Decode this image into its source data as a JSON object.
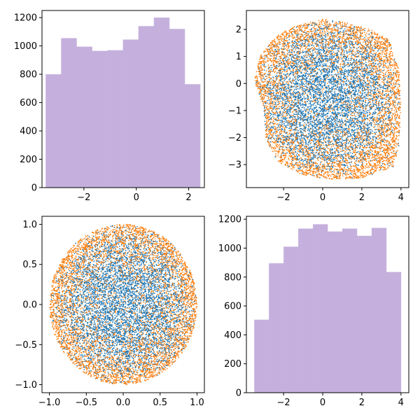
{
  "chart_data": [
    {
      "type": "histogram",
      "color": "#c5b0dd",
      "xlim": [
        -3.6,
        2.6
      ],
      "ylim": [
        0,
        1250
      ],
      "xticks": [
        -2,
        0,
        2
      ],
      "xtick_labels": [
        "−2",
        "0",
        "2"
      ],
      "yticks": [
        0,
        200,
        400,
        600,
        800,
        1000,
        1200
      ],
      "ytick_labels": [
        "0",
        "200",
        "400",
        "600",
        "800",
        "1000",
        "1200"
      ],
      "bin_edges": [
        -3.46,
        -2.87,
        -2.28,
        -1.69,
        -1.1,
        -0.51,
        0.08,
        0.67,
        1.26,
        1.85,
        2.44
      ],
      "counts": [
        800,
        1055,
        995,
        965,
        970,
        1045,
        1140,
        1200,
        1120,
        730
      ]
    },
    {
      "type": "scatter",
      "description_series": "two point clouds",
      "xlim": [
        -3.9,
        4.4
      ],
      "ylim": [
        -3.85,
        2.7
      ],
      "xticks": [
        -2,
        0,
        2,
        4
      ],
      "xtick_labels": [
        "−2",
        "0",
        "2",
        "4"
      ],
      "yticks": [
        -3,
        -2,
        -1,
        0,
        1,
        2
      ],
      "ytick_labels": [
        "−3",
        "−2",
        "−1",
        "0",
        "1",
        "2"
      ],
      "series": [
        {
          "color": "#1f77b4",
          "points_approx": 5000,
          "region": "interior"
        },
        {
          "color": "#ff7f0e",
          "points_approx": 5000,
          "region": "boundary-weighted"
        }
      ],
      "shape_boundary": [
        [
          -3.5,
          0.1
        ],
        [
          -3.2,
          1.0
        ],
        [
          -2.5,
          1.7
        ],
        [
          -1.5,
          2.1
        ],
        [
          0.0,
          2.4
        ],
        [
          1.5,
          2.2
        ],
        [
          2.5,
          2.0
        ],
        [
          3.4,
          1.6
        ],
        [
          3.9,
          0.5
        ],
        [
          4.0,
          -0.8
        ],
        [
          3.9,
          -2.3
        ],
        [
          3.6,
          -3.1
        ],
        [
          2.0,
          -3.5
        ],
        [
          0.5,
          -3.55
        ],
        [
          -1.0,
          -3.4
        ],
        [
          -2.3,
          -2.9
        ],
        [
          -2.9,
          -2.1
        ],
        [
          -3.0,
          -1.0
        ],
        [
          -3.3,
          -0.3
        ]
      ]
    },
    {
      "type": "scatter",
      "xlim": [
        -1.1,
        1.1
      ],
      "ylim": [
        -1.1,
        1.1
      ],
      "xticks": [
        -1.0,
        -0.5,
        0.0,
        0.5,
        1.0
      ],
      "xtick_labels": [
        "−1.0",
        "−0.5",
        "0.0",
        "0.5",
        "1.0"
      ],
      "yticks": [
        -1.0,
        -0.5,
        0.0,
        0.5,
        1.0
      ],
      "ytick_labels": [
        "−1.0",
        "−0.5",
        "0.0",
        "0.5",
        "1.0"
      ],
      "series": [
        {
          "color": "#1f77b4",
          "points_approx": 5000,
          "region": "interior"
        },
        {
          "color": "#ff7f0e",
          "points_approx": 5000,
          "region": "boundary-weighted"
        }
      ],
      "shape": "unit disk"
    },
    {
      "type": "histogram",
      "color": "#c5b0dd",
      "xlim": [
        -3.9,
        4.4
      ],
      "ylim": [
        0,
        1220
      ],
      "xticks": [
        -2,
        0,
        2,
        4
      ],
      "xtick_labels": [
        "−2",
        "0",
        "2",
        "4"
      ],
      "yticks": [
        0,
        200,
        400,
        600,
        800,
        1000,
        1200
      ],
      "ytick_labels": [
        "0",
        "200",
        "400",
        "600",
        "800",
        "1000",
        "1200"
      ],
      "bin_edges": [
        -3.5,
        -2.75,
        -2.0,
        -1.25,
        -0.5,
        0.25,
        1.0,
        1.75,
        2.5,
        3.25,
        4.0
      ],
      "counts": [
        505,
        895,
        1010,
        1135,
        1165,
        1115,
        1135,
        1085,
        1140,
        835
      ]
    }
  ]
}
